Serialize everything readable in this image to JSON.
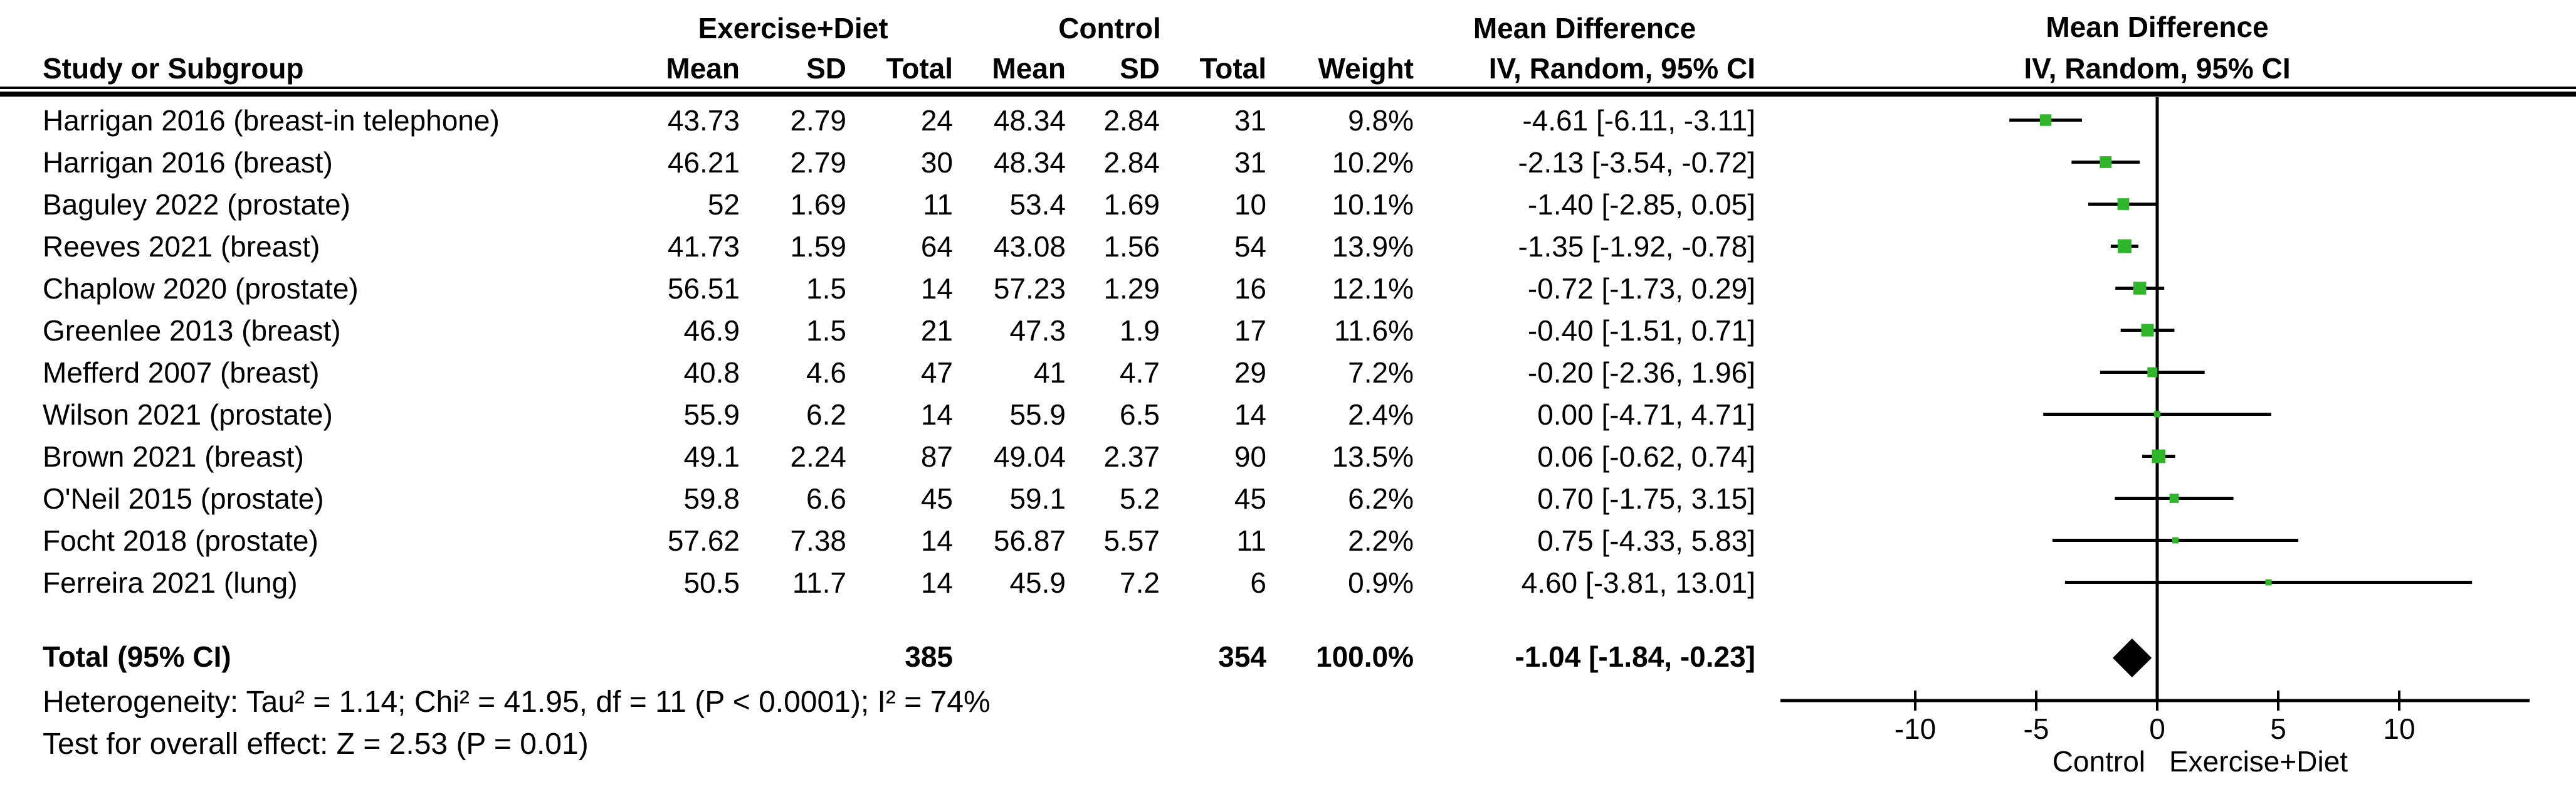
{
  "table": {
    "group_headers": {
      "exercise_diet": "Exercise+Diet",
      "control": "Control",
      "mean_difference": "Mean Difference"
    },
    "columns": [
      "Study or Subgroup",
      "Mean",
      "SD",
      "Total",
      "Mean",
      "SD",
      "Total",
      "Weight",
      "IV, Random, 95% CI"
    ]
  },
  "chart_data": {
    "type": "scatter",
    "subtype": "forest_plot",
    "title": "Mean Difference",
    "subtitle": "IV, Random, 95% CI",
    "marker_color": "#2FB62A",
    "line_color": "#000000",
    "axis": {
      "ticks": [
        -10,
        -5,
        0,
        5,
        10
      ],
      "xlim": [
        -15.6,
        15.4
      ],
      "left_label": "Control",
      "right_label": "Exercise+Diet"
    },
    "studies": [
      {
        "name": "Harrigan 2016 (breast-in telephone)",
        "e_mean": "43.73",
        "e_sd": "2.79",
        "e_total": "24",
        "c_mean": "48.34",
        "c_sd": "2.84",
        "c_total": "31",
        "weight": "9.8%",
        "weight_value": 9.8,
        "md": -4.61,
        "ci_low": -6.11,
        "ci_high": -3.11,
        "ci_text": "-4.61 [-6.11, -3.11]"
      },
      {
        "name": "Harrigan 2016 (breast)",
        "e_mean": "46.21",
        "e_sd": "2.79",
        "e_total": "30",
        "c_mean": "48.34",
        "c_sd": "2.84",
        "c_total": "31",
        "weight": "10.2%",
        "weight_value": 10.2,
        "md": -2.13,
        "ci_low": -3.54,
        "ci_high": -0.72,
        "ci_text": "-2.13 [-3.54, -0.72]"
      },
      {
        "name": "Baguley 2022 (prostate)",
        "e_mean": "52",
        "e_sd": "1.69",
        "e_total": "11",
        "c_mean": "53.4",
        "c_sd": "1.69",
        "c_total": "10",
        "weight": "10.1%",
        "weight_value": 10.1,
        "md": -1.4,
        "ci_low": -2.85,
        "ci_high": 0.05,
        "ci_text": "-1.40 [-2.85, 0.05]"
      },
      {
        "name": "Reeves 2021 (breast)",
        "e_mean": "41.73",
        "e_sd": "1.59",
        "e_total": "64",
        "c_mean": "43.08",
        "c_sd": "1.56",
        "c_total": "54",
        "weight": "13.9%",
        "weight_value": 13.9,
        "md": -1.35,
        "ci_low": -1.92,
        "ci_high": -0.78,
        "ci_text": "-1.35 [-1.92, -0.78]"
      },
      {
        "name": "Chaplow 2020 (prostate)",
        "e_mean": "56.51",
        "e_sd": "1.5",
        "e_total": "14",
        "c_mean": "57.23",
        "c_sd": "1.29",
        "c_total": "16",
        "weight": "12.1%",
        "weight_value": 12.1,
        "md": -0.72,
        "ci_low": -1.73,
        "ci_high": 0.29,
        "ci_text": "-0.72 [-1.73, 0.29]"
      },
      {
        "name": "Greenlee 2013 (breast)",
        "e_mean": "46.9",
        "e_sd": "1.5",
        "e_total": "21",
        "c_mean": "47.3",
        "c_sd": "1.9",
        "c_total": "17",
        "weight": "11.6%",
        "weight_value": 11.6,
        "md": -0.4,
        "ci_low": -1.51,
        "ci_high": 0.71,
        "ci_text": "-0.40 [-1.51, 0.71]"
      },
      {
        "name": "Mefferd 2007 (breast)",
        "e_mean": "40.8",
        "e_sd": "4.6",
        "e_total": "47",
        "c_mean": "41",
        "c_sd": "4.7",
        "c_total": "29",
        "weight": "7.2%",
        "weight_value": 7.2,
        "md": -0.2,
        "ci_low": -2.36,
        "ci_high": 1.96,
        "ci_text": "-0.20 [-2.36, 1.96]"
      },
      {
        "name": "Wilson 2021 (prostate)",
        "e_mean": "55.9",
        "e_sd": "6.2",
        "e_total": "14",
        "c_mean": "55.9",
        "c_sd": "6.5",
        "c_total": "14",
        "weight": "2.4%",
        "weight_value": 2.4,
        "md": 0.0,
        "ci_low": -4.71,
        "ci_high": 4.71,
        "ci_text": "0.00 [-4.71, 4.71]"
      },
      {
        "name": "Brown 2021 (breast)",
        "e_mean": "49.1",
        "e_sd": "2.24",
        "e_total": "87",
        "c_mean": "49.04",
        "c_sd": "2.37",
        "c_total": "90",
        "weight": "13.5%",
        "weight_value": 13.5,
        "md": 0.06,
        "ci_low": -0.62,
        "ci_high": 0.74,
        "ci_text": "0.06 [-0.62, 0.74]"
      },
      {
        "name": "O'Neil 2015 (prostate)",
        "e_mean": "59.8",
        "e_sd": "6.6",
        "e_total": "45",
        "c_mean": "59.1",
        "c_sd": "5.2",
        "c_total": "45",
        "weight": "6.2%",
        "weight_value": 6.2,
        "md": 0.7,
        "ci_low": -1.75,
        "ci_high": 3.15,
        "ci_text": "0.70 [-1.75, 3.15]"
      },
      {
        "name": "Focht 2018 (prostate)",
        "e_mean": "57.62",
        "e_sd": "7.38",
        "e_total": "14",
        "c_mean": "56.87",
        "c_sd": "5.57",
        "c_total": "11",
        "weight": "2.2%",
        "weight_value": 2.2,
        "md": 0.75,
        "ci_low": -4.33,
        "ci_high": 5.83,
        "ci_text": "0.75 [-4.33, 5.83]"
      },
      {
        "name": "Ferreira 2021 (lung)",
        "e_mean": "50.5",
        "e_sd": "11.7",
        "e_total": "14",
        "c_mean": "45.9",
        "c_sd": "7.2",
        "c_total": "6",
        "weight": "0.9%",
        "weight_value": 0.9,
        "md": 4.6,
        "ci_low": -3.81,
        "ci_high": 13.01,
        "ci_text": "4.60 [-3.81, 13.01]"
      }
    ],
    "total": {
      "label": "Total (95% CI)",
      "e_total": "385",
      "c_total": "354",
      "weight": "100.0%",
      "md": -1.04,
      "ci_low": -1.84,
      "ci_high": -0.23,
      "ci_text": "-1.04 [-1.84, -0.23]"
    },
    "heterogeneity": "Heterogeneity: Tau² = 1.14; Chi² = 41.95, df = 11 (P < 0.0001); I² = 74%",
    "overall_effect": "Test for overall effect: Z = 2.53 (P = 0.01)"
  }
}
